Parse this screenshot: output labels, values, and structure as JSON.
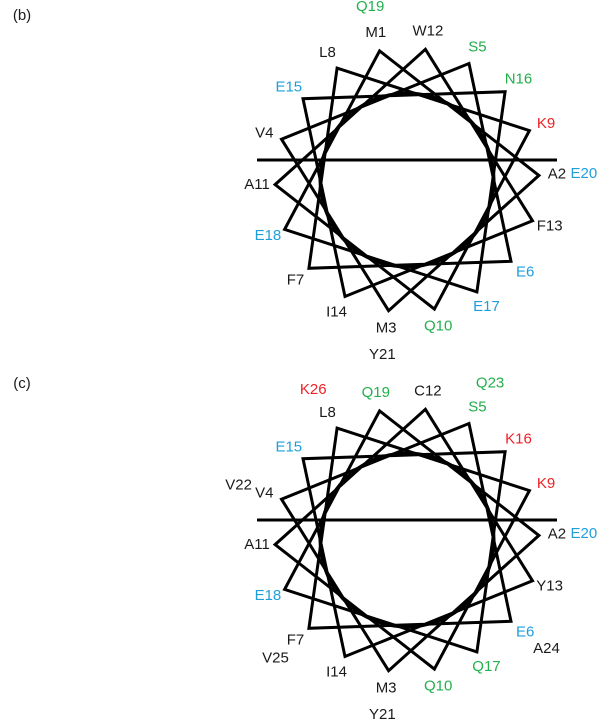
{
  "panels": [
    {
      "label": "(b)",
      "residues": [
        {
          "text": "M1",
          "color": "#1a1a1a"
        },
        {
          "text": "A2",
          "color": "#1a1a1a"
        },
        {
          "text": "M3",
          "color": "#1a1a1a"
        },
        {
          "text": "V4",
          "color": "#1a1a1a"
        },
        {
          "text": "S5",
          "color": "#22b04b"
        },
        {
          "text": "E6",
          "color": "#1e9fdc"
        },
        {
          "text": "F7",
          "color": "#1a1a1a"
        },
        {
          "text": "L8",
          "color": "#1a1a1a"
        },
        {
          "text": "K9",
          "color": "#ec2227"
        },
        {
          "text": "Q10",
          "color": "#22b04b"
        },
        {
          "text": "A11",
          "color": "#1a1a1a"
        },
        {
          "text": "W12",
          "color": "#1a1a1a"
        },
        {
          "text": "F13",
          "color": "#1a1a1a"
        },
        {
          "text": "I14",
          "color": "#1a1a1a"
        },
        {
          "text": "E15",
          "color": "#1e9fdc"
        },
        {
          "text": "N16",
          "color": "#22b04b"
        },
        {
          "text": "E17",
          "color": "#1e9fdc"
        },
        {
          "text": "E18",
          "color": "#1e9fdc"
        },
        {
          "text": "Q19",
          "color": "#22b04b"
        },
        {
          "text": "E20",
          "color": "#1e9fdc"
        },
        {
          "text": "Y21",
          "color": "#1a1a1a"
        }
      ]
    },
    {
      "label": "(c)",
      "residues": [
        {
          "text": "A2",
          "color": "#1a1a1a"
        },
        {
          "text": "M3",
          "color": "#1a1a1a"
        },
        {
          "text": "V4",
          "color": "#1a1a1a"
        },
        {
          "text": "S5",
          "color": "#22b04b"
        },
        {
          "text": "E6",
          "color": "#1e9fdc"
        },
        {
          "text": "F7",
          "color": "#1a1a1a"
        },
        {
          "text": "L8",
          "color": "#1a1a1a"
        },
        {
          "text": "K9",
          "color": "#ec2227"
        },
        {
          "text": "Q10",
          "color": "#22b04b"
        },
        {
          "text": "A11",
          "color": "#1a1a1a"
        },
        {
          "text": "C12",
          "color": "#1a1a1a"
        },
        {
          "text": "Y13",
          "color": "#1a1a1a"
        },
        {
          "text": "I14",
          "color": "#1a1a1a"
        },
        {
          "text": "E15",
          "color": "#1e9fdc"
        },
        {
          "text": "K16",
          "color": "#ec2227"
        },
        {
          "text": "Q17",
          "color": "#22b04b"
        },
        {
          "text": "E18",
          "color": "#1e9fdc"
        },
        {
          "text": "Q19",
          "color": "#22b04b"
        },
        {
          "text": "E20",
          "color": "#1e9fdc"
        },
        {
          "text": "Y21",
          "color": "#1a1a1a"
        },
        {
          "text": "V22",
          "color": "#1a1a1a"
        },
        {
          "text": "Q23",
          "color": "#22b04b"
        },
        {
          "text": "A24",
          "color": "#1a1a1a"
        },
        {
          "text": "V25",
          "color": "#1a1a1a"
        },
        {
          "text": "K26",
          "color": "#ec2227"
        }
      ]
    }
  ]
}
